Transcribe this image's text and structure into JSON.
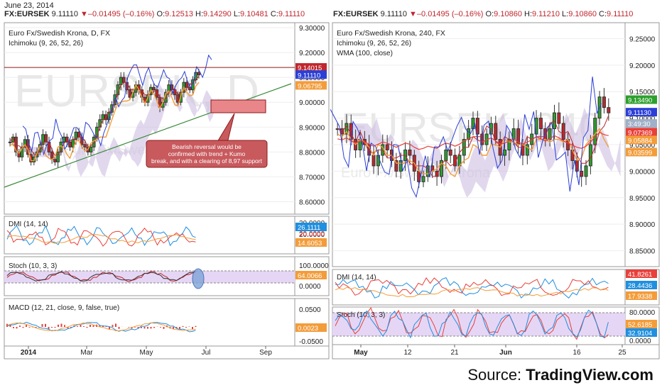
{
  "date": "June 23, 2014",
  "left_header": {
    "symbol": "FX:EURSEK",
    "last": "9.11110",
    "change": "▼–0.01495 (–0.16%)",
    "o_label": "O:",
    "o": "9.12513",
    "h_label": "H:",
    "h": "9.14290",
    "l_label": "L:",
    "l": "9.10481",
    "c_label": "C:",
    "c": "9.11110"
  },
  "right_header": {
    "symbol": "FX:EURSEK",
    "last": "9.11110",
    "change": "▼–0.01495 (–0.16%)",
    "o_label": "O:",
    "o": "9.10860",
    "h_label": "H:",
    "h": "9.11210",
    "l_label": "L:",
    "l": "9.10860",
    "c_label": "C:",
    "c": "9.11110"
  },
  "source": {
    "prefix": "Source: ",
    "brand": "TradingView.com"
  },
  "colors": {
    "up": "#2ca02c",
    "down": "#c0272d",
    "wma": "#2b3fd6",
    "kumo": "#c9b8e0",
    "stoch_fill": "#e6d6f5",
    "dmi_plus": "#1f8fe0",
    "dmi_minus": "#e8403a",
    "adx": "#f39c3a",
    "macd": "#1f8fe0",
    "signal": "#f39c3a",
    "hist": "#e8403a"
  },
  "chart_data": [
    {
      "type": "candlestick",
      "panel": "left-main",
      "title": "Euro Fx/Swedish Krona, D, FX",
      "indicator": "Ichimoku (9, 26, 52, 26)",
      "watermark": "EURSEK, D",
      "watermark_sub": "Euro Fx/Swedish Krona",
      "x_ticks": [
        "2014",
        "Mar",
        "May",
        "Jul",
        "Sep"
      ],
      "y_ticks": [
        "9.30000",
        "9.20000",
        "9.10000",
        "9.00000",
        "8.90000",
        "8.80000",
        "8.70000",
        "8.60000"
      ],
      "ylim": [
        8.55,
        9.32
      ],
      "price_tags": [
        {
          "label": "9.14015",
          "value": 9.14015,
          "color": "#c0272d"
        },
        {
          "label": "9.11110",
          "value": 9.1111,
          "color": "#2b3fd6"
        },
        {
          "label": "9.06795",
          "value": 9.06795,
          "color": "#f39c3a"
        }
      ],
      "annotation": "Bearish reversal would be confirmed with trend + Kumo break, and with a clearing of 8,97 support",
      "close": [
        8.84,
        8.86,
        8.8,
        8.78,
        8.82,
        8.85,
        8.79,
        8.76,
        8.78,
        8.8,
        8.83,
        8.87,
        8.84,
        8.8,
        8.77,
        8.76,
        8.8,
        8.84,
        8.86,
        8.84,
        8.82,
        8.85,
        8.88,
        8.86,
        8.83,
        8.82,
        8.8,
        8.82,
        8.86,
        8.9,
        8.93,
        8.95,
        8.93,
        8.96,
        8.99,
        9.03,
        9.07,
        9.1,
        9.08,
        9.05,
        9.02,
        9.04,
        9.07,
        9.05,
        9.02,
        9.0,
        9.03,
        9.06,
        9.05,
        9.02,
        8.98,
        9.0,
        9.04,
        9.07,
        9.05,
        9.03,
        9.0,
        9.04,
        9.08,
        9.06,
        9.05,
        9.09,
        9.12,
        9.11
      ]
    },
    {
      "type": "line",
      "panel": "left-dmi",
      "title": "DMI (14, 14)",
      "y_ticks": [
        "30.0000",
        "20.0000"
      ],
      "tags": [
        {
          "label": "26.1111",
          "color": "#1f8fe0"
        },
        {
          "label": "20.0000",
          "color": "#e8403a"
        },
        {
          "label": "14.6053",
          "color": "#f39c3a"
        }
      ]
    },
    {
      "type": "line",
      "panel": "left-stoch",
      "title": "Stoch (10, 3, 3)",
      "y_ticks": [
        "100.0000",
        "0.0000"
      ],
      "tags": [
        {
          "label": "64.0066",
          "color": "#f39c3a"
        }
      ]
    },
    {
      "type": "line",
      "panel": "left-macd",
      "title": "MACD (12, 21, close, 9, false, true)",
      "y_ticks": [
        "0.0500",
        "-0.0500"
      ],
      "tags": [
        {
          "label": "0.0023",
          "color": "#f39c3a"
        }
      ]
    },
    {
      "type": "candlestick",
      "panel": "right-main",
      "title": "Euro Fx/Swedish Krona, 240, FX",
      "indicator": "Ichimoku (9, 26, 52, 26)",
      "indicator2": "WMA (100, close)",
      "watermark": "EURSEK, 240",
      "watermark_sub": "Euro Fx/Swedish Krona",
      "x_ticks": [
        "May",
        "12",
        "21",
        "Jun",
        "16",
        "25"
      ],
      "y_ticks": [
        "9.25000",
        "9.20000",
        "9.15000",
        "9.10000",
        "9.05000",
        "9.00000",
        "8.95000",
        "8.90000",
        "8.85000"
      ],
      "ylim": [
        8.82,
        9.28
      ],
      "price_tags": [
        {
          "label": "9.13490",
          "value": 9.1349,
          "color": "#2ca02c"
        },
        {
          "label": "9.11130",
          "value": 9.1113,
          "color": "#2b3fd6"
        },
        {
          "label": "3:49:30",
          "value": 9.09,
          "color": "#9fb0c8"
        },
        {
          "label": "9.07369",
          "value": 9.07369,
          "color": "#e8403a"
        },
        {
          "label": "9.05884",
          "value": 9.05884,
          "color": "#f39c3a"
        },
        {
          "label": "9.03599",
          "value": 9.03599,
          "color": "#f39c3a"
        }
      ],
      "close": [
        9.08,
        9.07,
        9.09,
        9.06,
        9.04,
        9.06,
        9.05,
        9.03,
        9.01,
        9.03,
        9.05,
        9.04,
        9.02,
        9.0,
        9.02,
        9.04,
        9.03,
        9.0,
        8.98,
        8.99,
        9.01,
        9.0,
        8.99,
        9.02,
        9.04,
        9.03,
        9.01,
        9.03,
        9.06,
        9.08,
        9.1,
        9.07,
        9.05,
        9.07,
        9.09,
        9.06,
        9.03,
        9.04,
        9.06,
        9.08,
        9.05,
        9.03,
        9.05,
        9.07,
        9.1,
        9.08,
        9.06,
        9.08,
        9.11,
        9.09,
        9.06,
        9.04,
        9.02,
        9.0,
        8.99,
        9.01,
        9.05,
        9.1,
        9.14,
        9.12,
        9.11
      ]
    },
    {
      "type": "line",
      "panel": "right-dmi",
      "title": "DMI (14, 14)",
      "tags": [
        {
          "label": "41.8261",
          "color": "#e8403a"
        },
        {
          "label": "28.4436",
          "color": "#1f8fe0"
        },
        {
          "label": "17.9338",
          "color": "#f39c3a"
        }
      ]
    },
    {
      "type": "line",
      "panel": "right-stoch",
      "title": "Stoch (10, 3, 3)",
      "y_ticks": [
        "80.0000",
        "0.0000"
      ],
      "tags": [
        {
          "label": "52.6185",
          "color": "#f39c3a"
        },
        {
          "label": "32.9104",
          "color": "#1f8fe0"
        }
      ]
    }
  ]
}
